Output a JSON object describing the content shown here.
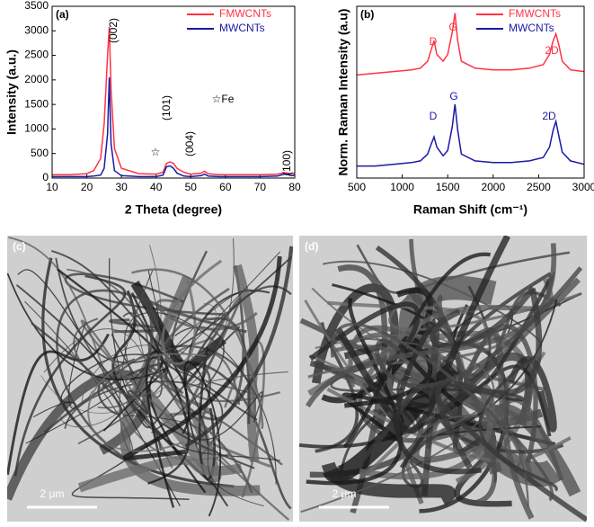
{
  "chart_data": [
    {
      "type": "line",
      "panel_label": "(a)",
      "xlabel": "2 Theta (degree)",
      "ylabel": "Intensity (a.u.)",
      "x": [
        10,
        15,
        20,
        22,
        24,
        25,
        26,
        26.5,
        27,
        28,
        30,
        35,
        40,
        42,
        43,
        44,
        45,
        46,
        48,
        50,
        53,
        54,
        55,
        58,
        60,
        65,
        70,
        75,
        77,
        78,
        79,
        80
      ],
      "series": [
        {
          "name": "FMWCNTs",
          "color": "#ff3344",
          "values": [
            70,
            70,
            90,
            150,
            400,
            1100,
            2500,
            3080,
            1800,
            600,
            200,
            90,
            80,
            120,
            300,
            330,
            300,
            200,
            120,
            80,
            100,
            140,
            90,
            70,
            70,
            70,
            70,
            80,
            110,
            100,
            90,
            100
          ]
        },
        {
          "name": "MWCNTs",
          "color": "#1a1aa6",
          "values": [
            30,
            30,
            30,
            40,
            60,
            200,
            900,
            2050,
            700,
            150,
            50,
            30,
            30,
            60,
            230,
            250,
            200,
            100,
            40,
            30,
            50,
            80,
            40,
            30,
            30,
            30,
            30,
            40,
            80,
            70,
            50,
            60
          ]
        }
      ],
      "xlim": [
        10,
        80
      ],
      "xticks": [
        10,
        20,
        30,
        40,
        50,
        60,
        70,
        80
      ],
      "ylim": [
        0,
        3500
      ],
      "yticks": [
        0,
        500,
        1000,
        1500,
        2000,
        2500,
        3000,
        3500
      ],
      "legend": "upper right",
      "annotations": [
        {
          "text": "(002)",
          "color": "#000000"
        },
        {
          "text": "(101)",
          "color": "#000000"
        },
        {
          "text": "(004)",
          "color": "#000000"
        },
        {
          "text": "(100)",
          "color": "#000000"
        },
        {
          "text": "☆Fe",
          "color": "#000000"
        },
        {
          "text": "☆",
          "color": "#000000"
        }
      ]
    },
    {
      "type": "line",
      "panel_label": "(b)",
      "xlabel": "Raman Shift (cm⁻¹)",
      "ylabel": "Norm. Raman Intensity (a.u)",
      "x": [
        500,
        700,
        900,
        1100,
        1200,
        1280,
        1320,
        1350,
        1380,
        1450,
        1500,
        1550,
        1580,
        1610,
        1650,
        1800,
        2000,
        2200,
        2400,
        2550,
        2620,
        2660,
        2690,
        2720,
        2760,
        2850,
        3000
      ],
      "series": [
        {
          "name": "FMWCNTs",
          "color": "#ff3344",
          "values": [
            0.6,
            0.61,
            0.62,
            0.63,
            0.64,
            0.68,
            0.75,
            0.8,
            0.72,
            0.68,
            0.72,
            0.85,
            0.96,
            0.8,
            0.68,
            0.64,
            0.63,
            0.63,
            0.64,
            0.66,
            0.72,
            0.8,
            0.84,
            0.78,
            0.68,
            0.63,
            0.62
          ]
        },
        {
          "name": "MWCNTs",
          "color": "#1a1aa6",
          "values": [
            0.07,
            0.07,
            0.08,
            0.09,
            0.1,
            0.14,
            0.2,
            0.24,
            0.18,
            0.13,
            0.16,
            0.3,
            0.43,
            0.28,
            0.14,
            0.1,
            0.09,
            0.09,
            0.1,
            0.12,
            0.18,
            0.28,
            0.33,
            0.25,
            0.15,
            0.1,
            0.08
          ]
        }
      ],
      "xlim": [
        500,
        3000
      ],
      "xticks": [
        500,
        1000,
        1500,
        2000,
        2500,
        3000
      ],
      "ylim": [
        0,
        1
      ],
      "legend": "upper right",
      "annotations": [
        {
          "text": "D",
          "color": "#ff3344"
        },
        {
          "text": "G",
          "color": "#ff3344"
        },
        {
          "text": "2D",
          "color": "#ff3344"
        },
        {
          "text": "D",
          "color": "#1a1aa6"
        },
        {
          "text": "G",
          "color": "#1a1aa6"
        },
        {
          "text": "2D",
          "color": "#1a1aa6"
        }
      ]
    }
  ],
  "images": [
    {
      "label": "(c)",
      "scale_bar": "2 μm"
    },
    {
      "label": "(d)",
      "scale_bar": "2 μm"
    }
  ]
}
